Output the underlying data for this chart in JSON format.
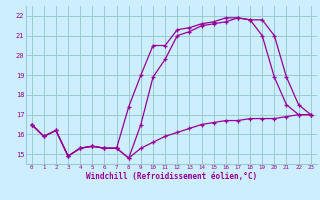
{
  "xlabel": "Windchill (Refroidissement éolien,°C)",
  "bg_color": "#cceeff",
  "grid_color": "#99cccc",
  "line_color": "#990099",
  "xlim": [
    -0.5,
    23.5
  ],
  "ylim": [
    14.5,
    22.5
  ],
  "xticks": [
    0,
    1,
    2,
    3,
    4,
    5,
    6,
    7,
    8,
    9,
    10,
    11,
    12,
    13,
    14,
    15,
    16,
    17,
    18,
    19,
    20,
    21,
    22,
    23
  ],
  "yticks": [
    15,
    16,
    17,
    18,
    19,
    20,
    21,
    22
  ],
  "series1_x": [
    0,
    1,
    2,
    3,
    4,
    5,
    6,
    7,
    8,
    9,
    10,
    11,
    12,
    13,
    14,
    15,
    16,
    17,
    18,
    19,
    20,
    21,
    22,
    23
  ],
  "series1_y": [
    16.5,
    15.9,
    16.2,
    14.9,
    15.3,
    15.4,
    15.3,
    15.3,
    17.4,
    19.0,
    20.5,
    20.5,
    21.3,
    21.4,
    21.6,
    21.7,
    21.9,
    21.9,
    21.8,
    21.0,
    18.9,
    17.5,
    17.0,
    17.0
  ],
  "series2_x": [
    0,
    1,
    2,
    3,
    4,
    5,
    6,
    7,
    8,
    9,
    10,
    11,
    12,
    13,
    14,
    15,
    16,
    17,
    18,
    19,
    20,
    21,
    22,
    23
  ],
  "series2_y": [
    16.5,
    15.9,
    16.2,
    14.9,
    15.3,
    15.4,
    15.3,
    15.3,
    14.8,
    16.5,
    18.9,
    19.8,
    21.0,
    21.2,
    21.5,
    21.6,
    21.7,
    21.9,
    21.8,
    21.8,
    21.0,
    18.9,
    17.5,
    17.0
  ],
  "series3_x": [
    0,
    1,
    2,
    3,
    4,
    5,
    6,
    7,
    8,
    9,
    10,
    11,
    12,
    13,
    14,
    15,
    16,
    17,
    18,
    19,
    20,
    21,
    22,
    23
  ],
  "series3_y": [
    16.5,
    15.9,
    16.2,
    14.9,
    15.3,
    15.4,
    15.3,
    15.3,
    14.8,
    15.3,
    15.6,
    15.9,
    16.1,
    16.3,
    16.5,
    16.6,
    16.7,
    16.7,
    16.8,
    16.8,
    16.8,
    16.9,
    17.0,
    17.0
  ]
}
